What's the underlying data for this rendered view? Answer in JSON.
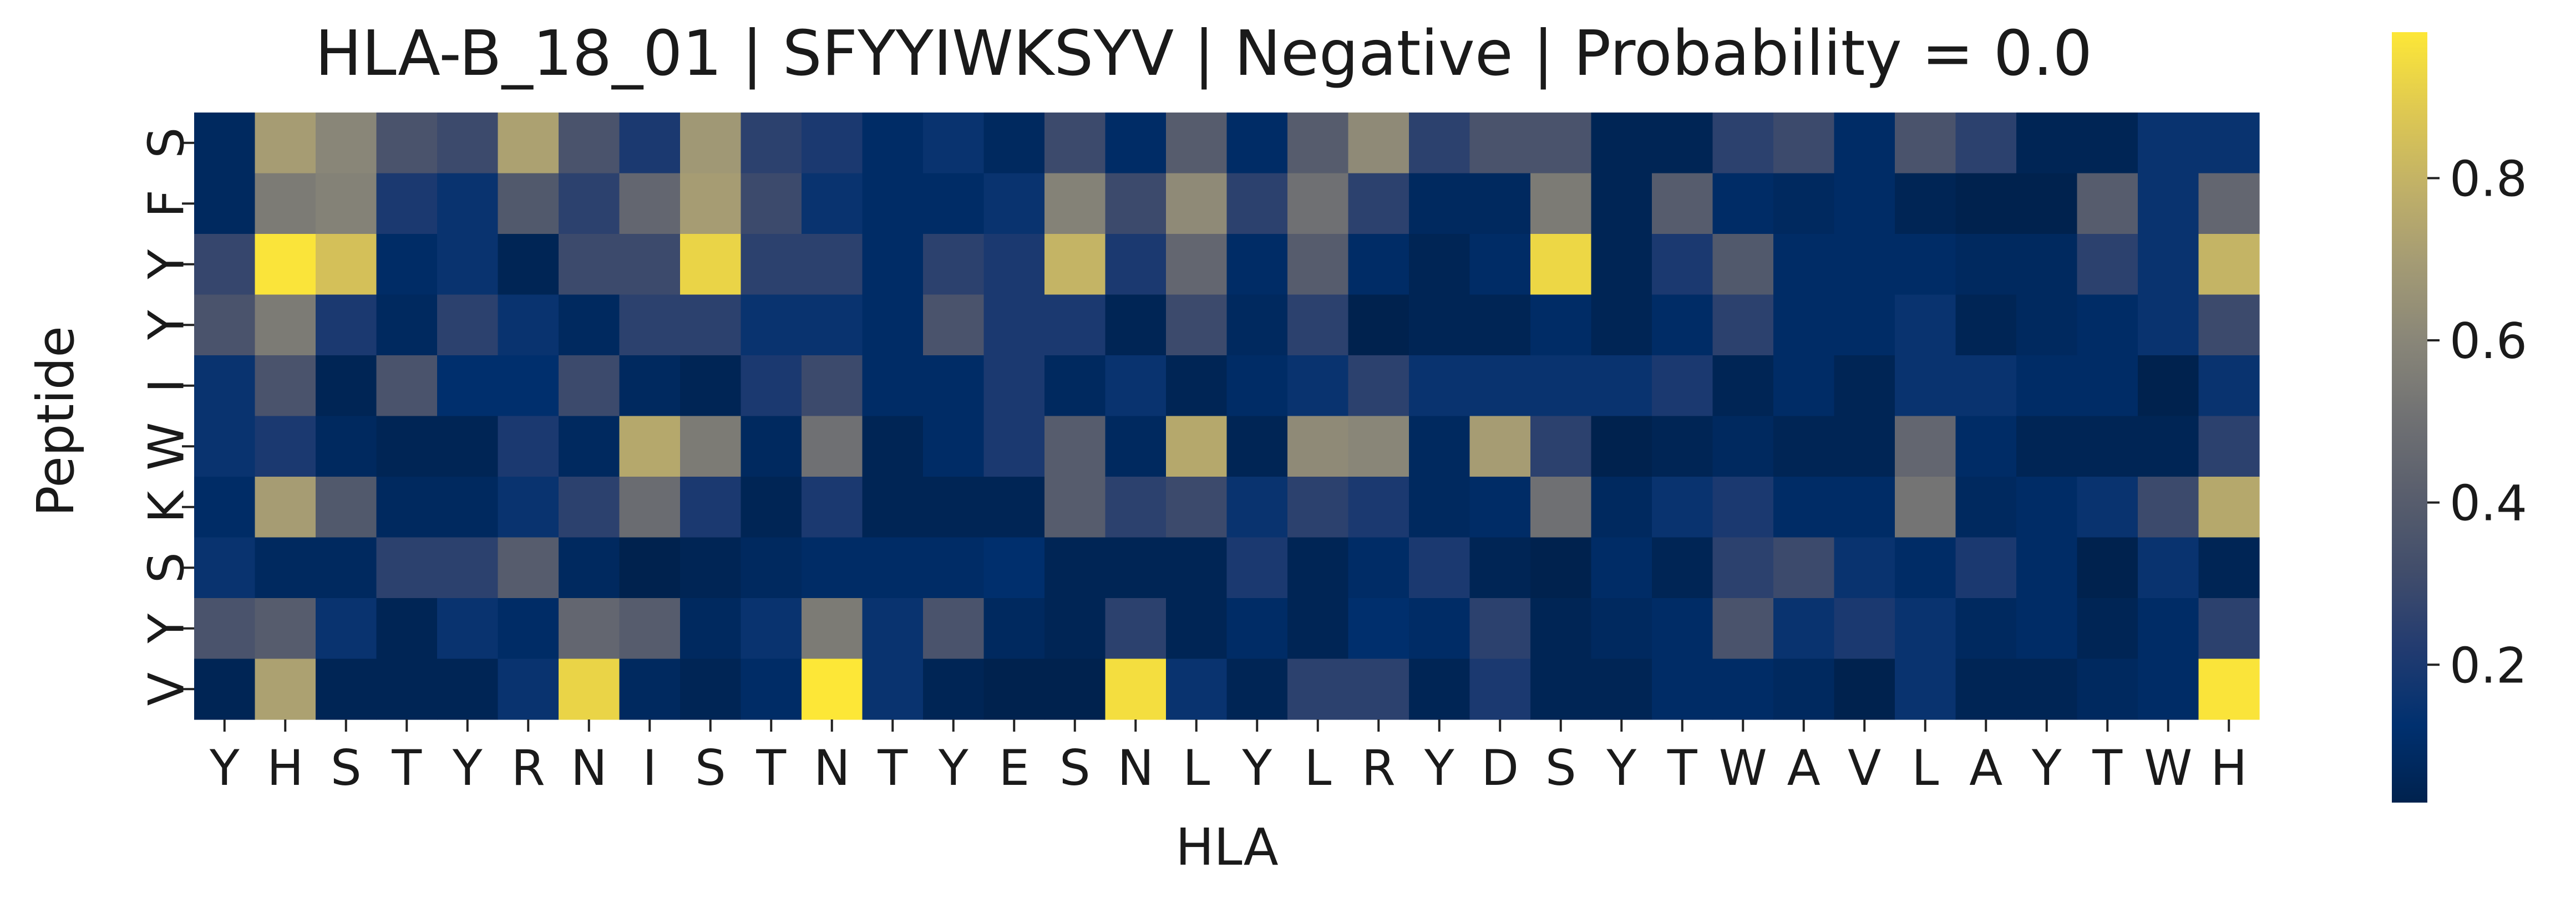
{
  "chart_data": {
    "type": "heatmap",
    "title": "HLA-B_18_01 | SFYYIWKSYV | Negative | Probability = 0.0",
    "xlabel": "HLA",
    "ylabel": "Peptide",
    "x_ticks": [
      "Y",
      "H",
      "S",
      "T",
      "Y",
      "R",
      "N",
      "I",
      "S",
      "T",
      "N",
      "T",
      "Y",
      "E",
      "S",
      "N",
      "L",
      "Y",
      "L",
      "R",
      "Y",
      "D",
      "S",
      "Y",
      "T",
      "W",
      "A",
      "V",
      "L",
      "A",
      "Y",
      "T",
      "W",
      "H"
    ],
    "y_ticks": [
      "S",
      "F",
      "Y",
      "Y",
      "I",
      "W",
      "K",
      "S",
      "Y",
      "V"
    ],
    "colormap": "cividis",
    "colorbar": {
      "min": 0.03,
      "max": 0.98,
      "ticks": [
        0.2,
        0.4,
        0.6,
        0.8
      ],
      "tick_labels": [
        "0.2",
        "0.4",
        "0.6",
        "0.8"
      ]
    },
    "values": [
      [
        0.08,
        0.7,
        0.6,
        0.35,
        0.3,
        0.72,
        0.35,
        0.2,
        0.68,
        0.25,
        0.2,
        0.1,
        0.15,
        0.08,
        0.3,
        0.1,
        0.4,
        0.1,
        0.4,
        0.62,
        0.25,
        0.35,
        0.35,
        0.05,
        0.05,
        0.25,
        0.3,
        0.1,
        0.35,
        0.25,
        0.05,
        0.05,
        0.15,
        0.15
      ],
      [
        0.08,
        0.55,
        0.58,
        0.2,
        0.15,
        0.38,
        0.25,
        0.45,
        0.7,
        0.3,
        0.15,
        0.1,
        0.1,
        0.15,
        0.58,
        0.3,
        0.62,
        0.25,
        0.5,
        0.25,
        0.08,
        0.08,
        0.55,
        0.05,
        0.4,
        0.1,
        0.08,
        0.1,
        0.05,
        0.03,
        0.03,
        0.4,
        0.15,
        0.45
      ],
      [
        0.28,
        0.97,
        0.85,
        0.1,
        0.15,
        0.05,
        0.3,
        0.3,
        0.92,
        0.25,
        0.25,
        0.1,
        0.25,
        0.2,
        0.8,
        0.2,
        0.45,
        0.1,
        0.4,
        0.1,
        0.05,
        0.1,
        0.93,
        0.05,
        0.2,
        0.38,
        0.1,
        0.1,
        0.1,
        0.08,
        0.08,
        0.25,
        0.15,
        0.8
      ],
      [
        0.35,
        0.55,
        0.2,
        0.08,
        0.25,
        0.15,
        0.08,
        0.25,
        0.25,
        0.15,
        0.15,
        0.1,
        0.35,
        0.2,
        0.2,
        0.05,
        0.3,
        0.08,
        0.25,
        0.03,
        0.05,
        0.05,
        0.1,
        0.05,
        0.1,
        0.25,
        0.1,
        0.1,
        0.15,
        0.05,
        0.08,
        0.1,
        0.15,
        0.3
      ],
      [
        0.15,
        0.35,
        0.05,
        0.35,
        0.12,
        0.12,
        0.3,
        0.08,
        0.05,
        0.2,
        0.3,
        0.1,
        0.1,
        0.2,
        0.08,
        0.15,
        0.05,
        0.1,
        0.15,
        0.25,
        0.15,
        0.15,
        0.15,
        0.15,
        0.2,
        0.05,
        0.1,
        0.05,
        0.15,
        0.15,
        0.1,
        0.1,
        0.03,
        0.15
      ],
      [
        0.15,
        0.2,
        0.08,
        0.05,
        0.05,
        0.2,
        0.08,
        0.75,
        0.55,
        0.08,
        0.5,
        0.05,
        0.1,
        0.2,
        0.4,
        0.08,
        0.75,
        0.05,
        0.62,
        0.6,
        0.08,
        0.7,
        0.25,
        0.03,
        0.05,
        0.08,
        0.05,
        0.05,
        0.45,
        0.1,
        0.05,
        0.05,
        0.05,
        0.25
      ],
      [
        0.1,
        0.7,
        0.38,
        0.08,
        0.08,
        0.15,
        0.25,
        0.48,
        0.2,
        0.05,
        0.2,
        0.05,
        0.05,
        0.05,
        0.4,
        0.25,
        0.3,
        0.15,
        0.25,
        0.2,
        0.08,
        0.1,
        0.5,
        0.08,
        0.15,
        0.2,
        0.1,
        0.1,
        0.52,
        0.08,
        0.1,
        0.15,
        0.3,
        0.75
      ],
      [
        0.15,
        0.08,
        0.08,
        0.25,
        0.25,
        0.4,
        0.08,
        0.03,
        0.05,
        0.08,
        0.1,
        0.1,
        0.1,
        0.12,
        0.05,
        0.05,
        0.05,
        0.2,
        0.05,
        0.1,
        0.2,
        0.05,
        0.03,
        0.1,
        0.05,
        0.25,
        0.3,
        0.15,
        0.1,
        0.2,
        0.1,
        0.03,
        0.15,
        0.05
      ],
      [
        0.35,
        0.4,
        0.15,
        0.05,
        0.15,
        0.1,
        0.45,
        0.4,
        0.08,
        0.15,
        0.55,
        0.15,
        0.35,
        0.08,
        0.05,
        0.25,
        0.05,
        0.1,
        0.05,
        0.12,
        0.1,
        0.25,
        0.05,
        0.08,
        0.1,
        0.35,
        0.15,
        0.2,
        0.15,
        0.08,
        0.1,
        0.05,
        0.1,
        0.25
      ],
      [
        0.05,
        0.72,
        0.05,
        0.05,
        0.05,
        0.15,
        0.92,
        0.08,
        0.05,
        0.1,
        0.98,
        0.15,
        0.05,
        0.03,
        0.03,
        0.95,
        0.15,
        0.05,
        0.25,
        0.25,
        0.05,
        0.2,
        0.05,
        0.05,
        0.1,
        0.1,
        0.08,
        0.03,
        0.15,
        0.05,
        0.05,
        0.08,
        0.1,
        0.97
      ]
    ]
  }
}
